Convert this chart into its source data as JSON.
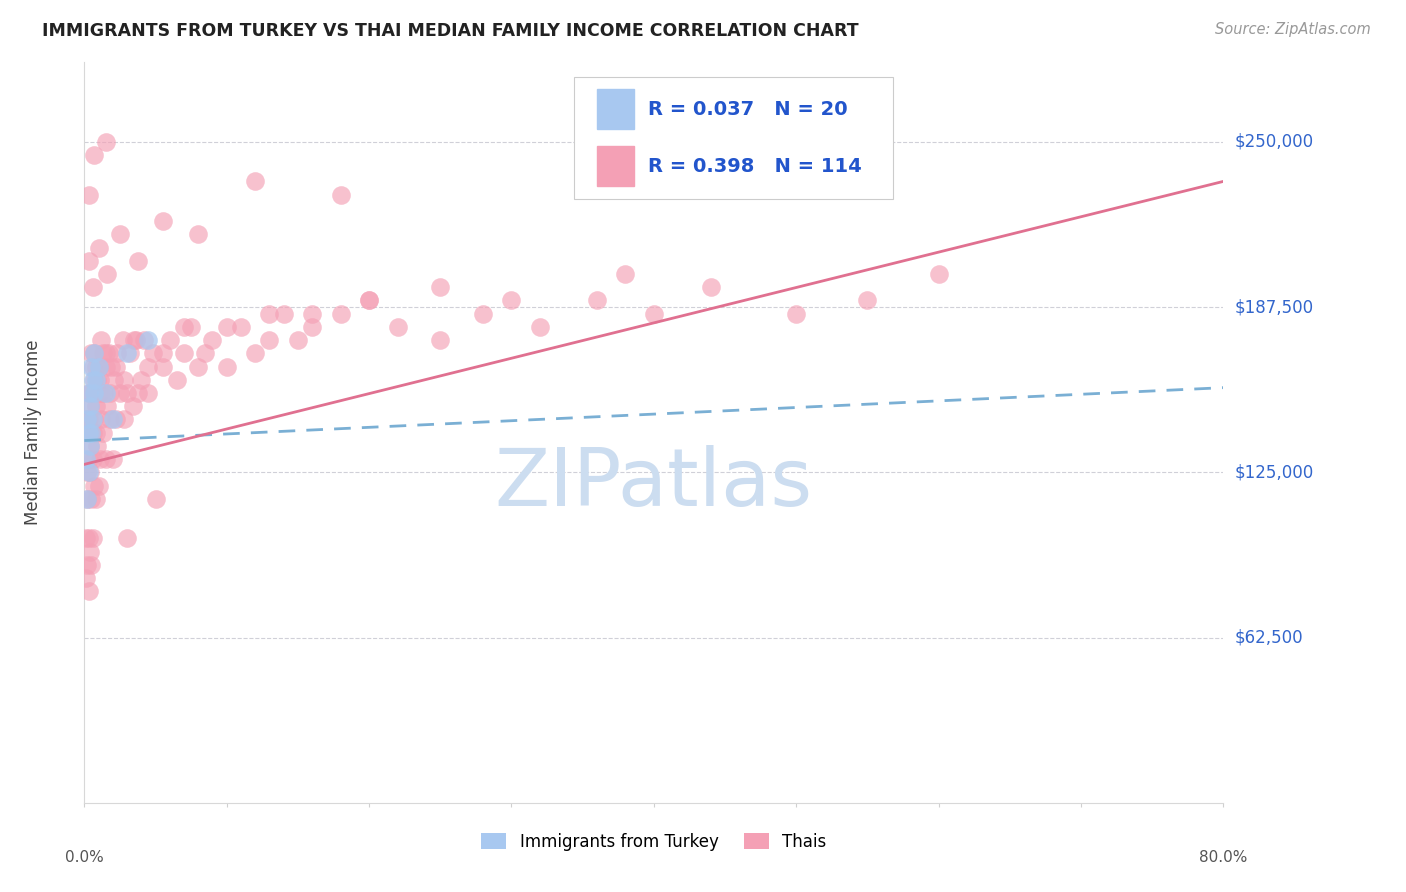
{
  "title": "IMMIGRANTS FROM TURKEY VS THAI MEDIAN FAMILY INCOME CORRELATION CHART",
  "source": "Source: ZipAtlas.com",
  "ylabel": "Median Family Income",
  "y_ticks": [
    62500,
    125000,
    187500,
    250000
  ],
  "y_tick_labels": [
    "$62,500",
    "$125,000",
    "$187,500",
    "$250,000"
  ],
  "xlim": [
    0.0,
    0.8
  ],
  "ylim": [
    0,
    280000
  ],
  "color_turkey": "#a8c8f0",
  "color_thai": "#f4a0b5",
  "trendline_turkey_color": "#7aafd4",
  "trendline_thai_color": "#e07090",
  "watermark": "ZIPatlas",
  "watermark_color": "#ccddf0",
  "turkey_x": [
    0.001,
    0.002,
    0.002,
    0.003,
    0.003,
    0.003,
    0.004,
    0.004,
    0.005,
    0.005,
    0.006,
    0.006,
    0.007,
    0.007,
    0.008,
    0.01,
    0.015,
    0.02,
    0.03,
    0.045
  ],
  "turkey_y": [
    130000,
    115000,
    145000,
    125000,
    140000,
    155000,
    135000,
    150000,
    140000,
    165000,
    145000,
    160000,
    155000,
    170000,
    160000,
    165000,
    155000,
    145000,
    170000,
    175000
  ],
  "thai_x": [
    0.001,
    0.001,
    0.002,
    0.002,
    0.002,
    0.003,
    0.003,
    0.003,
    0.003,
    0.004,
    0.004,
    0.004,
    0.005,
    0.005,
    0.005,
    0.005,
    0.006,
    0.006,
    0.006,
    0.007,
    0.007,
    0.007,
    0.008,
    0.008,
    0.008,
    0.009,
    0.009,
    0.01,
    0.01,
    0.011,
    0.011,
    0.012,
    0.012,
    0.013,
    0.013,
    0.014,
    0.015,
    0.015,
    0.016,
    0.017,
    0.018,
    0.019,
    0.02,
    0.021,
    0.022,
    0.023,
    0.025,
    0.027,
    0.028,
    0.03,
    0.032,
    0.034,
    0.036,
    0.038,
    0.04,
    0.042,
    0.045,
    0.048,
    0.05,
    0.055,
    0.06,
    0.065,
    0.07,
    0.075,
    0.08,
    0.09,
    0.1,
    0.11,
    0.12,
    0.13,
    0.14,
    0.15,
    0.16,
    0.18,
    0.2,
    0.22,
    0.25,
    0.28,
    0.32,
    0.36,
    0.4,
    0.44,
    0.5,
    0.55,
    0.6,
    0.002,
    0.003,
    0.004,
    0.005,
    0.006,
    0.007,
    0.008,
    0.01,
    0.012,
    0.015,
    0.018,
    0.022,
    0.028,
    0.035,
    0.045,
    0.055,
    0.07,
    0.085,
    0.1,
    0.13,
    0.16,
    0.2,
    0.25,
    0.3,
    0.38,
    0.003,
    0.006,
    0.01,
    0.016,
    0.025,
    0.038,
    0.055,
    0.08,
    0.12,
    0.18,
    0.003,
    0.007,
    0.015,
    0.03
  ],
  "thai_y": [
    100000,
    85000,
    90000,
    115000,
    145000,
    80000,
    100000,
    130000,
    155000,
    95000,
    125000,
    150000,
    90000,
    115000,
    140000,
    170000,
    100000,
    130000,
    165000,
    120000,
    145000,
    170000,
    115000,
    140000,
    165000,
    135000,
    160000,
    120000,
    155000,
    130000,
    160000,
    145000,
    175000,
    140000,
    170000,
    155000,
    130000,
    165000,
    150000,
    170000,
    145000,
    165000,
    130000,
    160000,
    145000,
    170000,
    155000,
    175000,
    145000,
    155000,
    170000,
    150000,
    175000,
    155000,
    160000,
    175000,
    155000,
    170000,
    115000,
    165000,
    175000,
    160000,
    170000,
    180000,
    165000,
    175000,
    165000,
    180000,
    170000,
    175000,
    185000,
    175000,
    180000,
    185000,
    190000,
    180000,
    175000,
    185000,
    180000,
    190000,
    185000,
    195000,
    185000,
    190000,
    200000,
    125000,
    145000,
    135000,
    155000,
    140000,
    160000,
    150000,
    165000,
    155000,
    170000,
    155000,
    165000,
    160000,
    175000,
    165000,
    170000,
    180000,
    170000,
    180000,
    185000,
    185000,
    190000,
    195000,
    190000,
    200000,
    205000,
    195000,
    210000,
    200000,
    215000,
    205000,
    220000,
    215000,
    235000,
    230000,
    230000,
    245000,
    250000,
    100000
  ]
}
